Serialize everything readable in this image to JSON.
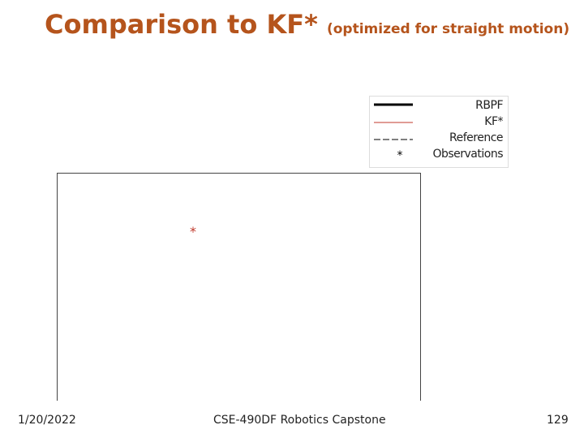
{
  "header": {
    "title": "Comparison to KF*",
    "subtitle": "(optimized for straight motion)"
  },
  "legend": {
    "items": [
      {
        "label": "RBPF"
      },
      {
        "label": "KF*"
      },
      {
        "label": "Reference"
      },
      {
        "label": "Observations",
        "marker": "*"
      }
    ]
  },
  "plot": {
    "marker": "*"
  },
  "footer": {
    "date": "1/20/2022",
    "course": "CSE-490DF Robotics Capstone",
    "page": "129"
  }
}
